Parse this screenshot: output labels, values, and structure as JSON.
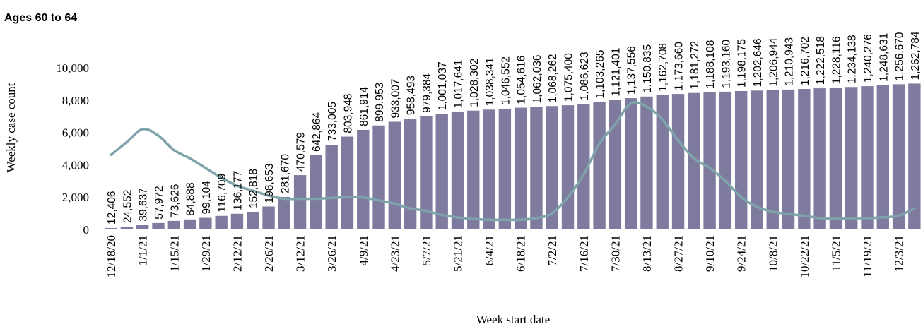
{
  "chart_data": {
    "type": "bar",
    "title": "Ages 60 to 64",
    "xlabel": "Week start date",
    "ylabel": "Weekly case count",
    "ylim": [
      0,
      10000
    ],
    "yticks": [
      "0",
      "2,000",
      "4,000",
      "6,000",
      "8,000",
      "10,000"
    ],
    "ytick_values": [
      0,
      2000,
      4000,
      6000,
      8000,
      10000
    ],
    "x_tick_labels": [
      "12/18/20",
      "1/1/21",
      "1/15/21",
      "1/29/21",
      "2/12/21",
      "2/26/21",
      "3/12/21",
      "3/26/21",
      "4/9/21",
      "4/23/21",
      "5/7/21",
      "5/21/21",
      "6/4/21",
      "6/18/21",
      "7/2/21",
      "7/16/21",
      "7/30/21",
      "8/13/21",
      "8/27/21",
      "9/10/21",
      "9/24/21",
      "10/8/21",
      "10/22/21",
      "11/5/21",
      "11/19/21",
      "12/3/21"
    ],
    "grid": false,
    "legend": "none",
    "bar_color": "#7e7b9e",
    "line_color": "#7fa3aa",
    "data_labels": [
      "12,406",
      "24,552",
      "39,637",
      "57,972",
      "73,626",
      "84,888",
      "99,104",
      "116,709",
      "136,177",
      "152,818",
      "198,653",
      "281,670",
      "470,579",
      "642,864",
      "733,005",
      "803,948",
      "861,914",
      "899,953",
      "933,007",
      "958,493",
      "979,384",
      "1,001,037",
      "1,017,641",
      "1,028,302",
      "1,038,341",
      "1,046,552",
      "1,054,616",
      "1,062,036",
      "1,068,262",
      "1,075,400",
      "1,086,623",
      "1,103,265",
      "1,121,401",
      "1,137,556",
      "1,150,835",
      "1,162,708",
      "1,173,660",
      "1,181,272",
      "1,188,108",
      "1,193,160",
      "1,198,175",
      "1,202,646",
      "1,206,944",
      "1,210,943",
      "1,216,702",
      "1,222,518",
      "1,228,116",
      "1,234,138",
      "1,240,276",
      "1,248,631",
      "1,256,670",
      "1,262,784"
    ],
    "series": [
      {
        "type": "bar",
        "values": [
          90,
          170,
          280,
          400,
          530,
          620,
          720,
          840,
          970,
          1090,
          1420,
          2010,
          3360,
          4590,
          5240,
          5740,
          6160,
          6430,
          6660,
          6850,
          6990,
          7150,
          7270,
          7350,
          7410,
          7470,
          7530,
          7580,
          7630,
          7680,
          7760,
          7880,
          8010,
          8120,
          8220,
          8300,
          8380,
          8440,
          8490,
          8520,
          8560,
          8590,
          8620,
          8650,
          8690,
          8730,
          8770,
          8810,
          8860,
          8920,
          8980,
          9020
        ]
      },
      {
        "type": "line",
        "values": [
          4620,
          5400,
          6200,
          5800,
          4900,
          4400,
          3800,
          3200,
          2700,
          2400,
          2100,
          1900,
          1900,
          1900,
          1950,
          2000,
          1980,
          1800,
          1600,
          1300,
          1150,
          900,
          750,
          650,
          600,
          600,
          600,
          700,
          1000,
          2000,
          3400,
          5300,
          6500,
          7800,
          7600,
          6800,
          5500,
          4400,
          3800,
          3000,
          2000,
          1400,
          1100,
          950,
          850,
          700,
          650,
          700,
          700,
          750,
          850,
          1300
        ]
      }
    ]
  }
}
